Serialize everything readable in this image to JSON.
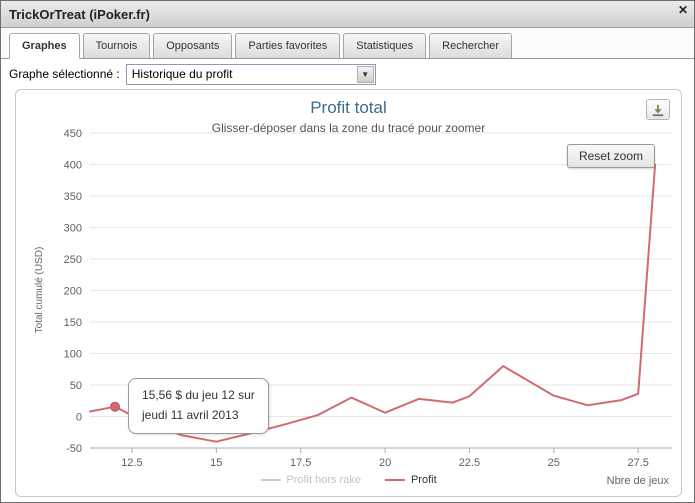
{
  "window": {
    "title": "TrickOrTreat (iPoker.fr)",
    "close_glyph": "✕"
  },
  "tabs": [
    {
      "label": "Graphes",
      "active": true
    },
    {
      "label": "Tournois",
      "active": false
    },
    {
      "label": "Opposants",
      "active": false
    },
    {
      "label": "Parties favorites",
      "active": false
    },
    {
      "label": "Statistiques",
      "active": false
    },
    {
      "label": "Rechercher",
      "active": false
    }
  ],
  "controls": {
    "graph_select_label": "Graphe sélectionné :",
    "graph_select_value": "Historique du profit",
    "dropdown_arrow_glyph": "▼"
  },
  "chart_ui": {
    "reset_zoom_label": "Reset zoom",
    "download_icon": "download-icon"
  },
  "chart_data": {
    "type": "line",
    "title": "Profit total",
    "subtitle": "Glisser-déposer dans la zone du tracé pour zoomer",
    "ylabel": "Total cumulé (USD)",
    "xlabel": "Nbre de jeux",
    "xlim": [
      11.26,
      28.5
    ],
    "ylim": [
      -50,
      450
    ],
    "x_ticks": [
      12.5,
      15,
      17.5,
      20,
      22.5,
      25,
      27.5
    ],
    "y_ticks": [
      -50,
      0,
      50,
      100,
      150,
      200,
      250,
      300,
      350,
      400,
      450
    ],
    "grid": true,
    "legend_position": "bottom",
    "series": [
      {
        "name": "Profit hors rake",
        "color": "#cccccc",
        "visible": false,
        "points": []
      },
      {
        "name": "Profit",
        "color": "#d26b70",
        "visible": true,
        "points": [
          [
            11.26,
            8
          ],
          [
            12,
            15.56
          ],
          [
            13,
            -12
          ],
          [
            14,
            -30
          ],
          [
            15,
            -40
          ],
          [
            16,
            -27
          ],
          [
            17,
            -13
          ],
          [
            18,
            2
          ],
          [
            19,
            30
          ],
          [
            20,
            6
          ],
          [
            21,
            28
          ],
          [
            22,
            22
          ],
          [
            22.5,
            32
          ],
          [
            23.5,
            80
          ],
          [
            25,
            33
          ],
          [
            26,
            18
          ],
          [
            27,
            26
          ],
          [
            27.5,
            36
          ],
          [
            28,
            400
          ]
        ]
      }
    ],
    "marker": {
      "x": 12,
      "y": 15.56
    },
    "tooltip": {
      "line1": "15,56 $ du jeu 12 sur",
      "line2": "jeudi 11 avril 2013"
    },
    "legend": [
      {
        "label": "Profit hors rake",
        "color": "#cccccc",
        "disabled": true
      },
      {
        "label": "Profit",
        "color": "#d26b70",
        "disabled": false
      }
    ],
    "colors": {
      "title": "#3e6e8e",
      "gridline": "#e6e6e6",
      "axis_line": "#a8aeb4",
      "tick_text": "#606060"
    }
  }
}
